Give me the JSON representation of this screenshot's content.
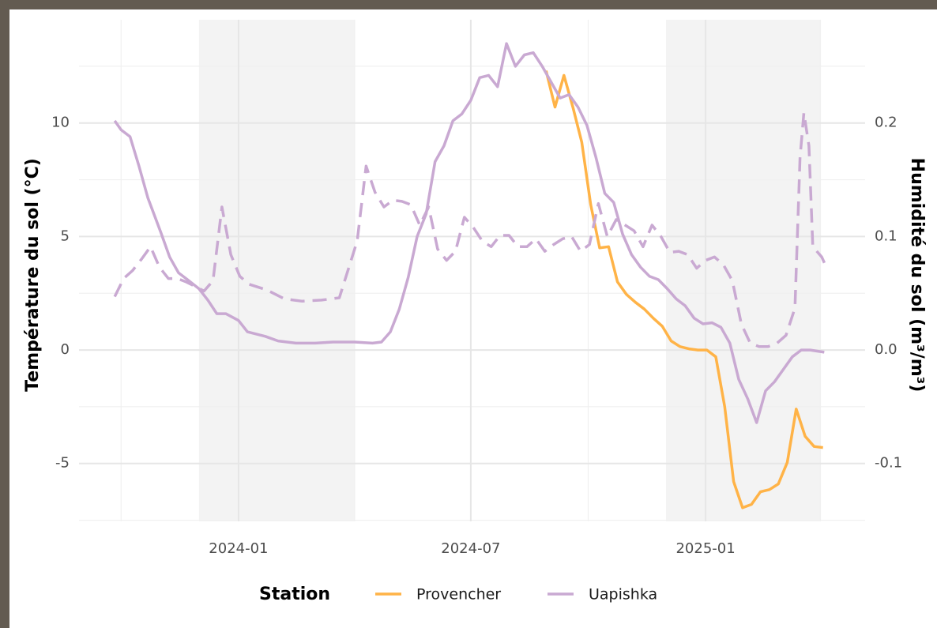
{
  "chart_data": {
    "type": "line",
    "y_label": "Température du sol (°C)",
    "y2_label": "Humidité du sol (m³/m³)",
    "legend_title": "Station",
    "legend": "bottom",
    "grid": true,
    "xlim": [
      "2023-08-29",
      "2025-05-06"
    ],
    "xticks": [
      {
        "value": "2024-01-01",
        "label": "2024-01"
      },
      {
        "value": "2024-07-01",
        "label": "2024-07"
      },
      {
        "value": "2025-01-01",
        "label": "2025-01"
      }
    ],
    "xticks_minor": [
      "2023-10-01",
      "2024-04-01",
      "2024-10-01",
      "2025-04-01"
    ],
    "ylim": [
      -7.55,
      14.55
    ],
    "yticks": [
      -5,
      0,
      5,
      10
    ],
    "yticks_minor": [
      -7.5,
      -2.5,
      2.5,
      7.5,
      12.5
    ],
    "y2lim": [
      -0.151,
      0.291
    ],
    "y2ticks": [
      {
        "value": -0.1,
        "label": "-0.1"
      },
      {
        "value": 0,
        "label": "0.0"
      },
      {
        "value": 0.1,
        "label": "0.1"
      },
      {
        "value": 0.2,
        "label": "0.2"
      }
    ],
    "shaded_periods": [
      [
        "2023-12-01",
        "2024-04-01"
      ],
      [
        "2024-12-01",
        "2025-04-01"
      ]
    ],
    "series": [
      {
        "name": "Provencher",
        "color": "#ffb347",
        "dash": false,
        "x": [
          "2024-08-29",
          "2024-09-05",
          "2024-09-12",
          "2024-09-19",
          "2024-09-26",
          "2024-10-03",
          "2024-10-10",
          "2024-10-17",
          "2024-10-24",
          "2024-10-31",
          "2024-11-07",
          "2024-11-14",
          "2024-11-21",
          "2024-11-28",
          "2024-12-05",
          "2024-12-12",
          "2024-12-19",
          "2024-12-26",
          "2025-01-02",
          "2025-01-09",
          "2025-01-16",
          "2025-01-23",
          "2025-01-30",
          "2025-02-06",
          "2025-02-13",
          "2025-02-20",
          "2025-02-27",
          "2025-03-06",
          "2025-03-13",
          "2025-03-20",
          "2025-03-27",
          "2025-04-03"
        ],
        "values": [
          12.3,
          10.7,
          12.1,
          10.7,
          9.15,
          6.4,
          4.5,
          4.55,
          3.0,
          2.45,
          2.1,
          1.8,
          1.4,
          1.05,
          0.4,
          0.15,
          0.05,
          0.0,
          0.0,
          -0.3,
          -2.5,
          -5.8,
          -6.95,
          -6.8,
          -6.25,
          -6.15,
          -5.9,
          -4.95,
          -2.6,
          -3.8,
          -4.25,
          -4.3
        ]
      },
      {
        "name": "Uapishka",
        "color": "#c9a9d2",
        "dash": false,
        "x": [
          "2023-09-26",
          "2023-10-01",
          "2023-10-08",
          "2023-10-15",
          "2023-10-22",
          "2023-11-01",
          "2023-11-08",
          "2023-11-15",
          "2023-11-22",
          "2023-12-01",
          "2023-12-08",
          "2023-12-15",
          "2023-12-22",
          "2024-01-01",
          "2024-01-08",
          "2024-01-22",
          "2024-02-01",
          "2024-02-15",
          "2024-03-01",
          "2024-03-15",
          "2024-04-01",
          "2024-04-15",
          "2024-04-22",
          "2024-04-29",
          "2024-05-06",
          "2024-05-13",
          "2024-05-20",
          "2024-05-27",
          "2024-06-03",
          "2024-06-10",
          "2024-06-17",
          "2024-06-24",
          "2024-07-01",
          "2024-07-08",
          "2024-07-15",
          "2024-07-22",
          "2024-07-29",
          "2024-08-05",
          "2024-08-12",
          "2024-08-19",
          "2024-08-26",
          "2024-09-02",
          "2024-09-09",
          "2024-09-16",
          "2024-09-23",
          "2024-09-30",
          "2024-10-07",
          "2024-10-14",
          "2024-10-21",
          "2024-10-28",
          "2024-11-04",
          "2024-11-11",
          "2024-11-18",
          "2024-11-25",
          "2024-12-02",
          "2024-12-09",
          "2024-12-16",
          "2024-12-23",
          "2024-12-30",
          "2025-01-06",
          "2025-01-13",
          "2025-01-20",
          "2025-01-27",
          "2025-02-03",
          "2025-02-10",
          "2025-02-17",
          "2025-02-24",
          "2025-03-03",
          "2025-03-10",
          "2025-03-17",
          "2025-03-24",
          "2025-04-04"
        ],
        "values": [
          10.1,
          9.7,
          9.4,
          8.1,
          6.7,
          5.2,
          4.1,
          3.4,
          3.1,
          2.7,
          2.2,
          1.6,
          1.6,
          1.3,
          0.8,
          0.6,
          0.4,
          0.3,
          0.3,
          0.35,
          0.35,
          0.3,
          0.35,
          0.8,
          1.8,
          3.2,
          5.0,
          6.0,
          8.3,
          9.0,
          10.1,
          10.4,
          11.0,
          12.0,
          12.1,
          11.6,
          13.5,
          12.5,
          13.0,
          13.1,
          12.5,
          11.8,
          11.1,
          11.25,
          10.7,
          9.9,
          8.5,
          6.9,
          6.5,
          5.1,
          4.2,
          3.65,
          3.25,
          3.1,
          2.7,
          2.25,
          1.95,
          1.4,
          1.15,
          1.2,
          1.0,
          0.3,
          -1.3,
          -2.15,
          -3.2,
          -1.8,
          -1.4,
          -0.85,
          -0.3,
          0.0,
          0.0,
          -0.1
        ]
      },
      {
        "name": "Uapishka",
        "color": "#c9a9d2",
        "dash": true,
        "axis": "y2",
        "x": [
          "2023-09-26",
          "2023-10-03",
          "2023-10-10",
          "2023-10-17",
          "2023-10-24",
          "2023-10-31",
          "2023-11-07",
          "2023-11-14",
          "2023-11-21",
          "2023-11-28",
          "2023-12-05",
          "2023-12-12",
          "2023-12-19",
          "2023-12-26",
          "2024-01-02",
          "2024-01-09",
          "2024-01-23",
          "2024-02-06",
          "2024-02-20",
          "2024-03-06",
          "2024-03-20",
          "2024-04-03",
          "2024-04-10",
          "2024-04-17",
          "2024-04-24",
          "2024-05-01",
          "2024-05-08",
          "2024-05-15",
          "2024-05-22",
          "2024-05-29",
          "2024-06-05",
          "2024-06-12",
          "2024-06-19",
          "2024-06-26",
          "2024-07-03",
          "2024-07-10",
          "2024-07-17",
          "2024-07-24",
          "2024-07-31",
          "2024-08-07",
          "2024-08-14",
          "2024-08-21",
          "2024-08-28",
          "2024-09-04",
          "2024-09-11",
          "2024-09-18",
          "2024-09-25",
          "2024-10-02",
          "2024-10-09",
          "2024-10-16",
          "2024-10-23",
          "2024-10-30",
          "2024-11-06",
          "2024-11-13",
          "2024-11-20",
          "2024-11-27",
          "2024-12-04",
          "2024-12-11",
          "2024-12-18",
          "2024-12-25",
          "2025-01-01",
          "2025-01-08",
          "2025-01-15",
          "2025-01-22",
          "2025-01-29",
          "2025-02-05",
          "2025-02-12",
          "2025-02-19",
          "2025-02-26",
          "2025-03-05",
          "2025-03-12",
          "2025-03-16",
          "2025-03-19",
          "2025-03-23",
          "2025-03-26",
          "2025-04-02",
          "2025-04-06"
        ],
        "values": [
          0.047,
          0.063,
          0.07,
          0.08,
          0.091,
          0.073,
          0.063,
          0.063,
          0.06,
          0.056,
          0.052,
          0.061,
          0.126,
          0.084,
          0.065,
          0.058,
          0.053,
          0.045,
          0.043,
          0.044,
          0.046,
          0.096,
          0.162,
          0.139,
          0.126,
          0.132,
          0.131,
          0.128,
          0.11,
          0.126,
          0.089,
          0.079,
          0.087,
          0.117,
          0.108,
          0.096,
          0.091,
          0.101,
          0.101,
          0.091,
          0.091,
          0.098,
          0.087,
          0.093,
          0.098,
          0.1,
          0.087,
          0.093,
          0.129,
          0.1,
          0.115,
          0.11,
          0.105,
          0.091,
          0.11,
          0.1,
          0.086,
          0.087,
          0.084,
          0.072,
          0.079,
          0.082,
          0.075,
          0.061,
          0.023,
          0.006,
          0.003,
          0.003,
          0.006,
          0.013,
          0.037,
          0.169,
          0.209,
          0.18,
          0.091,
          0.082,
          0.072
        ]
      }
    ]
  }
}
